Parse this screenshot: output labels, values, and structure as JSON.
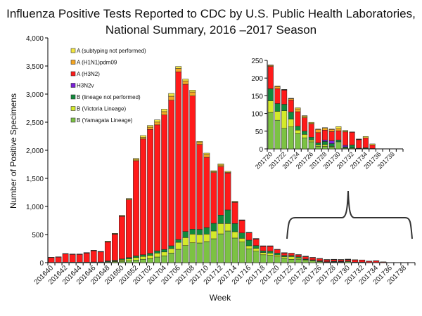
{
  "chart_data": [
    {
      "type": "bar",
      "stacked": true,
      "title": [
        "Influenza Positive Tests Reported to CDC by U.S. Public Health Laboratories,",
        "National Summary, 2016 –2017 Season"
      ],
      "xlabel": "Week",
      "ylabel": "Number of Positive Specimens",
      "ylim": [
        0,
        4000
      ],
      "yticks": [
        "0",
        "500",
        "1,000",
        "1,500",
        "2,000",
        "2,500",
        "3,000",
        "3,500",
        "4,000"
      ],
      "ytick_values": [
        0,
        500,
        1000,
        1500,
        2000,
        2500,
        3000,
        3500,
        4000
      ],
      "legend_placement": "top-left",
      "categories": [
        "201640",
        "201641",
        "201642",
        "201643",
        "201644",
        "201645",
        "201646",
        "201647",
        "201648",
        "201649",
        "201650",
        "201651",
        "201652",
        "201701",
        "201702",
        "201703",
        "201704",
        "201705",
        "201706",
        "201707",
        "201708",
        "201709",
        "201710",
        "201711",
        "201712",
        "201713",
        "201714",
        "201715",
        "201716",
        "201717",
        "201718",
        "201719",
        "201720",
        "201721",
        "201722",
        "201723",
        "201724",
        "201725",
        "201726",
        "201727",
        "201728",
        "201729",
        "201730",
        "201731",
        "201732",
        "201733",
        "201734",
        "201735",
        "201736",
        "201737",
        "201738",
        "201739"
      ],
      "series": [
        {
          "name": "B (Yamagata Lineage)",
          "color": "#7cc243",
          "values": [
            2,
            2,
            3,
            3,
            3,
            4,
            5,
            5,
            10,
            15,
            25,
            35,
            45,
            60,
            70,
            100,
            120,
            170,
            237,
            304,
            354,
            350,
            375,
            425,
            512,
            563,
            438,
            367,
            246,
            204,
            140,
            130,
            103,
            81,
            58,
            62,
            43,
            31,
            20,
            7,
            7,
            5,
            20,
            2,
            2,
            1,
            1,
            0,
            0,
            0,
            0,
            0
          ]
        },
        {
          "name": "B (Victoria Lineage)",
          "color": "#d4ea2a",
          "values": [
            1,
            1,
            2,
            2,
            2,
            2,
            3,
            3,
            8,
            10,
            20,
            30,
            45,
            50,
            60,
            70,
            70,
            80,
            125,
            142,
            154,
            150,
            133,
            138,
            184,
            133,
            112,
            66,
            54,
            50,
            40,
            40,
            33,
            25,
            50,
            22,
            10,
            10,
            5,
            4,
            5,
            2,
            0,
            1,
            1,
            0,
            0,
            0,
            0,
            0,
            0,
            0
          ]
        },
        {
          "name": "B (lineage not performed)",
          "color": "#118a3c",
          "values": [
            2,
            2,
            3,
            3,
            3,
            3,
            4,
            4,
            12,
            15,
            20,
            25,
            30,
            30,
            35,
            40,
            45,
            50,
            50,
            108,
            88,
            92,
            117,
            137,
            150,
            242,
            146,
            96,
            100,
            50,
            30,
            35,
            34,
            22,
            18,
            20,
            11,
            9,
            8,
            6,
            9,
            8,
            5,
            3,
            8,
            1,
            2,
            1,
            0,
            0,
            0,
            0
          ]
        },
        {
          "name": "H3N2v",
          "color": "#7a1fd8",
          "values": [
            0,
            0,
            0,
            0,
            0,
            0,
            0,
            0,
            0,
            0,
            0,
            0,
            0,
            0,
            0,
            0,
            0,
            0,
            0,
            0,
            0,
            0,
            0,
            0,
            0,
            0,
            0,
            0,
            0,
            0,
            0,
            0,
            0,
            0,
            0,
            0,
            0,
            0,
            0,
            0,
            4,
            8,
            0,
            4,
            0,
            0,
            0,
            0,
            0,
            0,
            0,
            0
          ]
        },
        {
          "name": "A (H3N2)",
          "color": "#ff1a1a",
          "values": [
            85,
            92,
            145,
            138,
            138,
            160,
            198,
            178,
            335,
            465,
            757,
            1027,
            1694,
            2062,
            2207,
            2242,
            2393,
            2592,
            2984,
            2621,
            2371,
            1512,
            1250,
            904,
            862,
            658,
            375,
            221,
            130,
            115,
            80,
            85,
            63,
            42,
            40,
            34,
            41,
            38,
            37,
            29,
            28,
            26,
            26,
            38,
            36,
            24,
            28,
            10,
            0,
            0,
            0,
            0
          ]
        },
        {
          "name": "A (H1N1)pdm09",
          "color": "#f5a623",
          "values": [
            3,
            3,
            4,
            4,
            4,
            5,
            5,
            5,
            8,
            8,
            10,
            12,
            20,
            30,
            40,
            50,
            60,
            70,
            60,
            60,
            70,
            35,
            50,
            15,
            30,
            10,
            10,
            6,
            5,
            6,
            5,
            5,
            3,
            6,
            1,
            4,
            8,
            4,
            3,
            9,
            5,
            6,
            6,
            2,
            1,
            1,
            0,
            0,
            0,
            0,
            0,
            0
          ]
        },
        {
          "name": "A (subtyping not performed)",
          "color": "#f3e640",
          "values": [
            3,
            4,
            5,
            4,
            4,
            5,
            6,
            5,
            10,
            8,
            10,
            13,
            20,
            30,
            30,
            40,
            45,
            50,
            36,
            32,
            34,
            19,
            25,
            18,
            20,
            19,
            11,
            6,
            5,
            5,
            5,
            5,
            1,
            2,
            1,
            1,
            3,
            2,
            2,
            1,
            2,
            1,
            6,
            2,
            0,
            1,
            4,
            3,
            0,
            0,
            0,
            0
          ]
        }
      ],
      "xtick_labels": [
        "201640",
        "201642",
        "201644",
        "201646",
        "201648",
        "201650",
        "201652",
        "201702",
        "201704",
        "201706",
        "201708",
        "201710",
        "201712",
        "201714",
        "201716",
        "201718",
        "201720",
        "201722",
        "201724",
        "201726",
        "201728",
        "201730",
        "201732",
        "201734",
        "201736",
        "201738"
      ]
    },
    {
      "type": "bar",
      "stacked": true,
      "inset": true,
      "ylim": [
        0,
        250
      ],
      "yticks": [
        "0",
        "50",
        "100",
        "150",
        "200",
        "250"
      ],
      "ytick_values": [
        0,
        50,
        100,
        150,
        200,
        250
      ],
      "categories": [
        "201720",
        "201721",
        "201722",
        "201723",
        "201724",
        "201725",
        "201726",
        "201727",
        "201728",
        "201729",
        "201730",
        "201731",
        "201732",
        "201733",
        "201734",
        "201735",
        "201736",
        "201737",
        "201738",
        "201739"
      ],
      "xtick_labels": [
        "201720",
        "201722",
        "201724",
        "201726",
        "201728",
        "201730",
        "201732",
        "201734",
        "201736",
        "201738"
      ],
      "series_source": "same series as main chart, weeks 201720–201739"
    }
  ]
}
